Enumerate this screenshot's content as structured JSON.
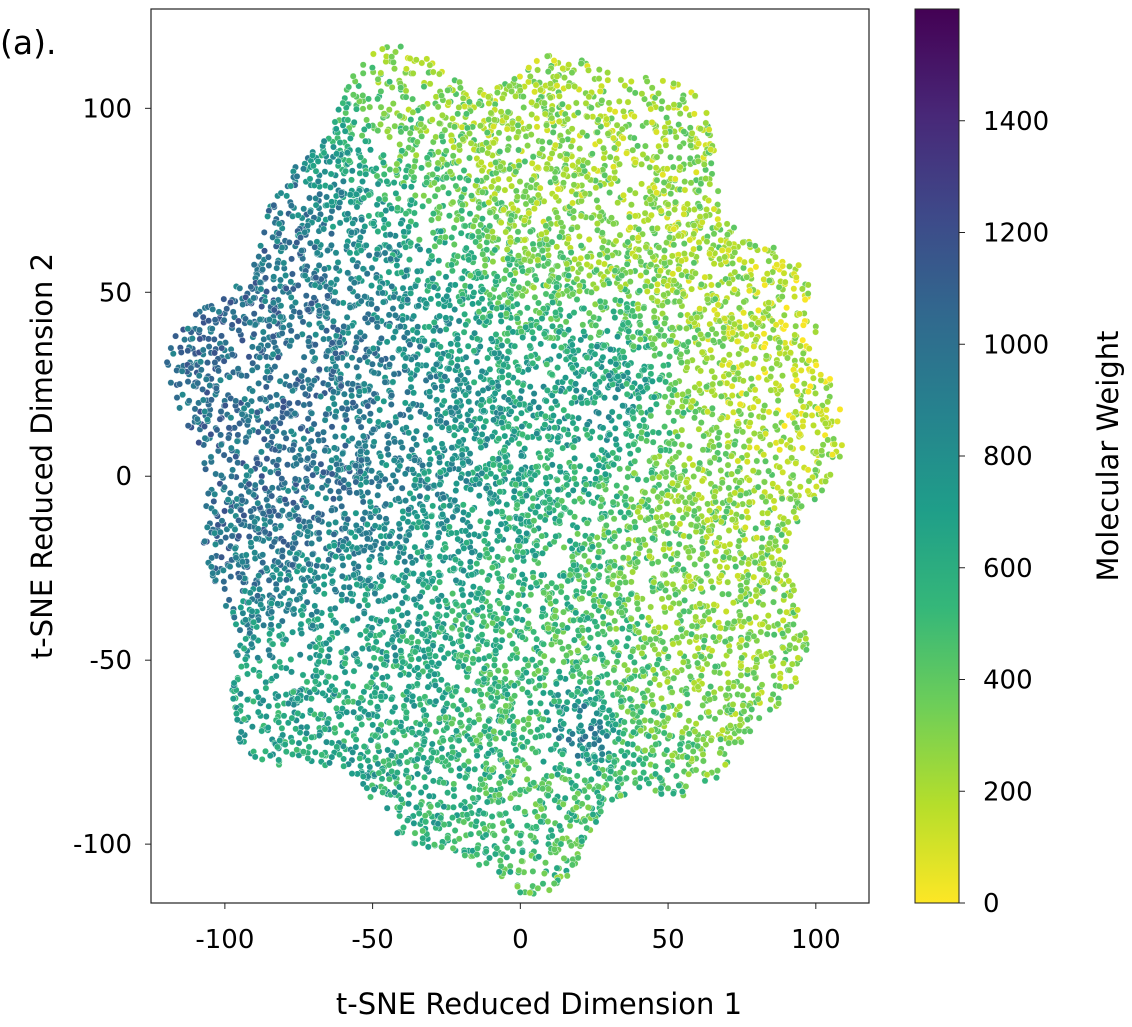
{
  "panel_label": "(a).",
  "colors": {
    "viridis": [
      "#fde725",
      "#b5de2b",
      "#6ece58",
      "#35b779",
      "#1f9e89",
      "#26828e",
      "#31688e",
      "#3e4989",
      "#482878",
      "#440154"
    ]
  },
  "chart_data": {
    "type": "scatter",
    "title": "",
    "xlabel": "t-SNE Reduced Dimension 1",
    "ylabel": "t-SNE Reduced Dimension 2",
    "xlim": [
      -125,
      118
    ],
    "ylim": [
      -116,
      127
    ],
    "xticks": [
      -100,
      -50,
      0,
      50,
      100
    ],
    "yticks": [
      -100,
      -50,
      0,
      50,
      100
    ],
    "xtick_labels": [
      "-100",
      "-50",
      "0",
      "50",
      "100"
    ],
    "ytick_labels": [
      "-100",
      "-50",
      "0",
      "50",
      "100"
    ],
    "point_count_estimate": "very dense (tens of thousands of points)",
    "point_cloud_extent": {
      "x": [
        -112,
        104
      ],
      "y": [
        -105,
        115
      ]
    },
    "colorbar": {
      "label": "Molecular Weight",
      "colormap": "viridis",
      "range": [
        0,
        1600
      ],
      "ticks": [
        0,
        200,
        400,
        600,
        800,
        1000,
        1200,
        1400
      ],
      "tick_labels": [
        "0",
        "200",
        "400",
        "600",
        "800",
        "1000",
        "1200",
        "1400"
      ]
    },
    "regions": [
      {
        "description": "dark cluster upper-left",
        "center": [
          -70,
          10
        ],
        "radius": 40,
        "value": 1050
      },
      {
        "description": "mid-left",
        "center": [
          -30,
          10
        ],
        "radius": 45,
        "value": 850
      },
      {
        "description": "small dark spot",
        "center": [
          20,
          -67
        ],
        "radius": 8,
        "value": 1050
      },
      {
        "description": "upper-center dark streak",
        "center": [
          25,
          25
        ],
        "radius": 18,
        "value": 900
      },
      {
        "description": "left lower",
        "center": [
          -60,
          -60
        ],
        "radius": 30,
        "value": 650
      },
      {
        "description": "center",
        "center": [
          0,
          -30
        ],
        "radius": 40,
        "value": 480
      },
      {
        "description": "upper yellow",
        "center": [
          20,
          70
        ],
        "radius": 45,
        "value": 250
      },
      {
        "description": "right yellow lobe",
        "center": [
          90,
          30
        ],
        "radius": 18,
        "value": 150
      },
      {
        "description": "right mid",
        "center": [
          60,
          -20
        ],
        "radius": 30,
        "value": 280
      }
    ]
  }
}
